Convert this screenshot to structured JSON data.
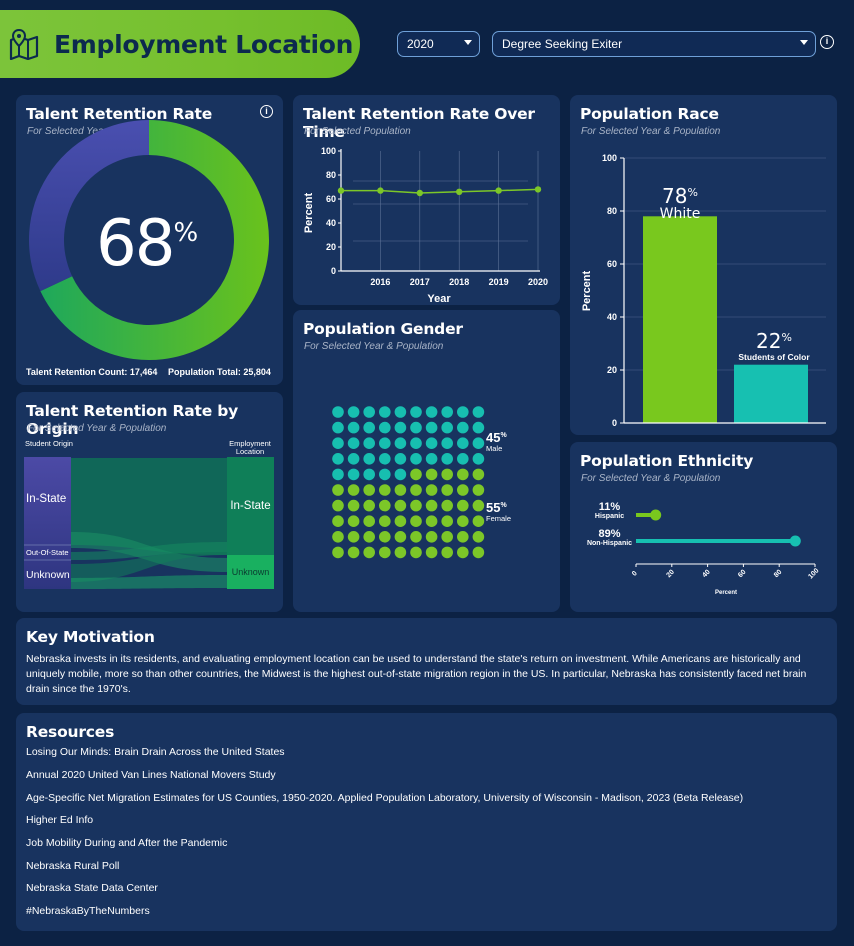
{
  "header": {
    "title": "Employment Location"
  },
  "filters": {
    "year": "2020",
    "population": "Degree Seeking Exiter"
  },
  "retention": {
    "title": "Talent Retention Rate",
    "subtitle": "For Selected Year & Population",
    "value": "68",
    "pct_sign": "%",
    "count_label": "Talent Retention Count: 17,464",
    "total_label": "Population Total: 25,804",
    "fraction": 0.68,
    "colors": {
      "retained": "#4dbf2a",
      "other": "#3a3f9a"
    }
  },
  "over_time": {
    "title": "Talent Retention Rate Over Time",
    "subtitle": "For Selected Population",
    "xlabel": "Year",
    "ylabel": "Percent"
  },
  "origin": {
    "title": "Talent Retention Rate by Origin",
    "subtitle": "For Selected Year & Population",
    "left_header": "Student Origin",
    "right_header": "Employment Location",
    "left_nodes": [
      "In-State",
      "Out-Of-State",
      "Unknown"
    ],
    "right_nodes": [
      "In-State",
      "Unknown"
    ]
  },
  "gender": {
    "title": "Population Gender",
    "subtitle": "For Selected Year & Population",
    "male_pct": "45",
    "male_label": "Male",
    "female_pct": "55",
    "female_label": "Female",
    "pct_sign": "%",
    "colors": {
      "male": "#17bfb0",
      "female": "#7cc728"
    }
  },
  "race": {
    "title": "Population Race",
    "subtitle": "For Selected Year & Population",
    "white_pct": "78",
    "white_label": "White",
    "soc_pct": "22",
    "soc_label": "Students of Color",
    "pct_sign": "%",
    "ylabel": "Percent"
  },
  "ethnicity": {
    "title": "Population Ethnicity",
    "subtitle": "For Selected Year & Population",
    "hisp_pct": "11%",
    "hisp_label": "Hispanic",
    "nonhisp_pct": "89%",
    "nonhisp_label": "Non-Hispanic",
    "xlabel": "Percent"
  },
  "motivation": {
    "title": "Key Motivation",
    "body": "Nebraska invests in its residents, and evaluating employment location can be used to understand the state's return on investment. While Americans are historically and uniquely mobile, more so than other countries, the Midwest is the highest out-of-state migration region in the US. In particular, Nebraska has consistently faced net brain drain since the 1970's."
  },
  "resources": {
    "title": "Resources",
    "links": [
      "Losing Our Minds: Brain Drain Across the United States",
      "Annual 2020 United Van Lines National Movers Study",
      "Age-Specific Net Migration Estimates for US Counties, 1950-2020. Applied Population Laboratory, University of Wisconsin - Madison, 2023 (Beta Release)",
      "Higher Ed Info",
      "Job Mobility During and After the Pandemic",
      "Nebraska Rural Poll",
      "Nebraska State Data Center",
      "#NebraskaByTheNumbers"
    ]
  },
  "chart_data": [
    {
      "type": "line",
      "x": [
        2015,
        2016,
        2017,
        2018,
        2019,
        2020
      ],
      "series": [
        {
          "values": [
            67,
            67,
            65,
            66,
            67,
            68
          ]
        }
      ],
      "xticks": [
        "2016",
        "2017",
        "2018",
        "2019",
        "2020"
      ],
      "xlabel": "Year",
      "ylabel": "Percent",
      "ylim": [
        0,
        100
      ],
      "yticks": [
        "0",
        "20",
        "40",
        "60",
        "80",
        "100"
      ]
    },
    {
      "type": "bar",
      "categories": [
        "White",
        "Students of Color"
      ],
      "values": [
        78,
        22
      ],
      "ylabel": "Percent",
      "ylim": [
        0,
        100
      ],
      "yticks": [
        "0",
        "20",
        "40",
        "60",
        "80",
        "100"
      ],
      "colors": [
        "#79c81e",
        "#17c0b1"
      ]
    },
    {
      "type": "scatter",
      "categories": [
        "Hispanic",
        "Non-Hispanic"
      ],
      "values": [
        11,
        89
      ],
      "xlabel": "Percent",
      "xlim": [
        0,
        100
      ],
      "xticks": [
        "0",
        "20",
        "40",
        "60",
        "80",
        "100"
      ],
      "colors": [
        "#79c81e",
        "#17c0b1"
      ]
    }
  ]
}
